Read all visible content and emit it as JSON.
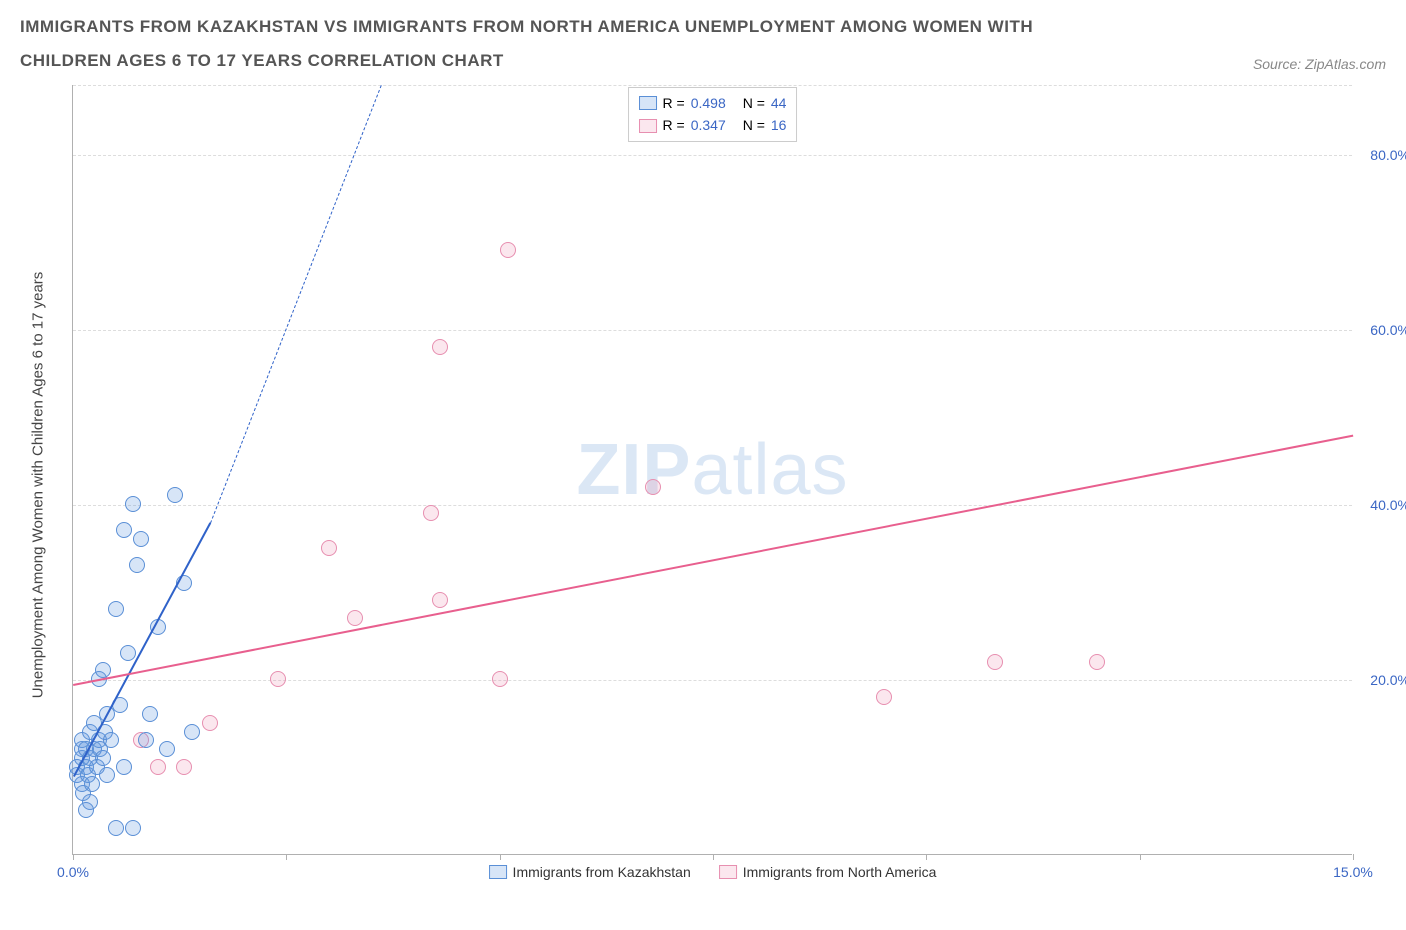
{
  "title": "IMMIGRANTS FROM KAZAKHSTAN VS IMMIGRANTS FROM NORTH AMERICA UNEMPLOYMENT AMONG WOMEN WITH CHILDREN AGES 6 TO 17 YEARS CORRELATION CHART",
  "source_label": "Source: ZipAtlas.com",
  "yaxis_label": "Unemployment Among Women with Children Ages 6 to 17 years",
  "watermark": {
    "strong": "ZIP",
    "light": "atlas",
    "color": "#dbe7f5"
  },
  "colors": {
    "series_a_fill": "rgba(96,150,222,0.25)",
    "series_a_stroke": "#5a8fd6",
    "series_a_line": "#2f62c9",
    "series_b_fill": "rgba(235,120,160,0.18)",
    "series_b_stroke": "#e78fb0",
    "series_b_line": "#e85f8e",
    "tick_text": "#3a66c4",
    "grid": "#dddddd",
    "axis": "#b0b0b0"
  },
  "chart": {
    "type": "scatter",
    "xlim": [
      0,
      15
    ],
    "ylim": [
      0,
      88
    ],
    "yticks": [
      20,
      40,
      60,
      80
    ],
    "ytick_labels": [
      "20.0%",
      "40.0%",
      "60.0%",
      "80.0%"
    ],
    "xticks": [
      0,
      2.5,
      5,
      7.5,
      10,
      12.5,
      15
    ],
    "xtick_labels_shown": {
      "0": "0.0%",
      "15": "15.0%"
    },
    "marker_radius": 8,
    "marker_stroke_width": 1.2,
    "trend_width_solid": 2.2,
    "trend_width_dash": 1.2
  },
  "legend_top": {
    "rows": [
      {
        "series": "a",
        "r_label": "R =",
        "r_val": "0.498",
        "n_label": "N =",
        "n_val": "44"
      },
      {
        "series": "b",
        "r_label": "R =",
        "r_val": "0.347",
        "n_label": "N =",
        "n_val": "16"
      }
    ]
  },
  "legend_bottom": {
    "items": [
      {
        "series": "a",
        "label": "Immigrants from Kazakhstan"
      },
      {
        "series": "b",
        "label": "Immigrants from North America"
      }
    ]
  },
  "series_a": {
    "name": "Immigrants from Kazakhstan",
    "points": [
      [
        0.05,
        9
      ],
      [
        0.05,
        10
      ],
      [
        0.1,
        8
      ],
      [
        0.1,
        11
      ],
      [
        0.1,
        12
      ],
      [
        0.1,
        13
      ],
      [
        0.12,
        7
      ],
      [
        0.15,
        10
      ],
      [
        0.15,
        12
      ],
      [
        0.18,
        9
      ],
      [
        0.2,
        11
      ],
      [
        0.2,
        14
      ],
      [
        0.22,
        8
      ],
      [
        0.25,
        12
      ],
      [
        0.25,
        15
      ],
      [
        0.28,
        10
      ],
      [
        0.3,
        13
      ],
      [
        0.3,
        20
      ],
      [
        0.32,
        12
      ],
      [
        0.35,
        11
      ],
      [
        0.35,
        21
      ],
      [
        0.38,
        14
      ],
      [
        0.4,
        9
      ],
      [
        0.4,
        16
      ],
      [
        0.45,
        13
      ],
      [
        0.5,
        28
      ],
      [
        0.55,
        17
      ],
      [
        0.6,
        37
      ],
      [
        0.65,
        23
      ],
      [
        0.7,
        40
      ],
      [
        0.75,
        33
      ],
      [
        0.8,
        36
      ],
      [
        0.85,
        13
      ],
      [
        0.9,
        16
      ],
      [
        1.0,
        26
      ],
      [
        1.1,
        12
      ],
      [
        1.2,
        41
      ],
      [
        1.3,
        31
      ],
      [
        1.4,
        14
      ],
      [
        0.5,
        3
      ],
      [
        0.7,
        3
      ],
      [
        0.2,
        6
      ],
      [
        0.15,
        5
      ],
      [
        0.6,
        10
      ]
    ],
    "trend": {
      "x0": 0,
      "y0": 9,
      "x1": 1.6,
      "y1": 38,
      "dash_to_x": 3.6,
      "dash_to_y": 88
    }
  },
  "series_b": {
    "name": "Immigrants from North America",
    "points": [
      [
        0.8,
        13
      ],
      [
        1.0,
        10
      ],
      [
        1.3,
        10
      ],
      [
        1.6,
        15
      ],
      [
        2.4,
        20
      ],
      [
        3.0,
        35
      ],
      [
        3.3,
        27
      ],
      [
        4.2,
        39
      ],
      [
        4.3,
        29
      ],
      [
        4.3,
        58
      ],
      [
        5.0,
        20
      ],
      [
        5.1,
        69
      ],
      [
        6.8,
        42
      ],
      [
        9.5,
        18
      ],
      [
        10.8,
        22
      ],
      [
        12.0,
        22
      ]
    ],
    "trend": {
      "x0": 0,
      "y0": 19.5,
      "x1": 15,
      "y1": 48
    }
  }
}
